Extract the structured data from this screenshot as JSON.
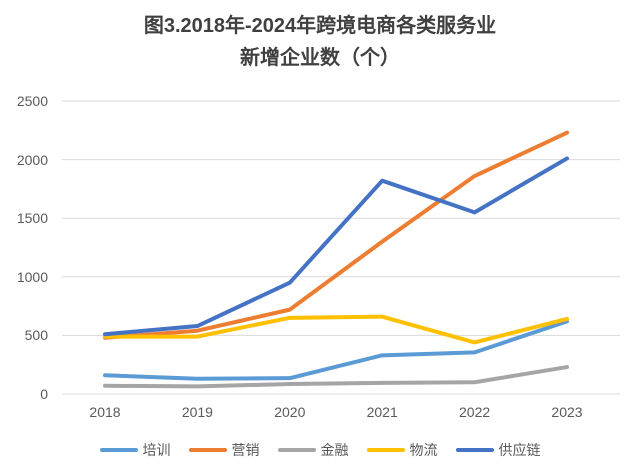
{
  "title": {
    "line1": "图3.2018年-2024年跨境电商各类服务业",
    "line2": "新增企业数（个）"
  },
  "chart_data": {
    "type": "line",
    "title": "图3.2018年-2024年跨境电商各类服务业新增企业数（个）",
    "categories": [
      "2018",
      "2019",
      "2020",
      "2021",
      "2022",
      "2023"
    ],
    "series": [
      {
        "name": "培训",
        "color": "#5B9BD5",
        "values": [
          160,
          130,
          135,
          330,
          355,
          620
        ]
      },
      {
        "name": "营销",
        "color": "#ED7D31",
        "values": [
          480,
          540,
          720,
          1300,
          1860,
          2230
        ]
      },
      {
        "name": "金融",
        "color": "#A5A5A5",
        "values": [
          70,
          65,
          85,
          95,
          100,
          230
        ]
      },
      {
        "name": "物流",
        "color": "#FFC000",
        "values": [
          490,
          490,
          650,
          660,
          440,
          640
        ]
      },
      {
        "name": "供应链",
        "color": "#4472C4",
        "values": [
          510,
          580,
          950,
          1820,
          1550,
          2010
        ]
      }
    ],
    "xlabel": "",
    "ylabel": "",
    "ylim": [
      0,
      2500
    ],
    "yticks": [
      0,
      500,
      1000,
      1500,
      2000,
      2500
    ],
    "grid": true,
    "legend_position": "bottom"
  },
  "colors": {
    "background": "#FFFFFF",
    "gridline": "#D9D9D9",
    "axis_text": "#595959",
    "title_text": "#404040"
  }
}
